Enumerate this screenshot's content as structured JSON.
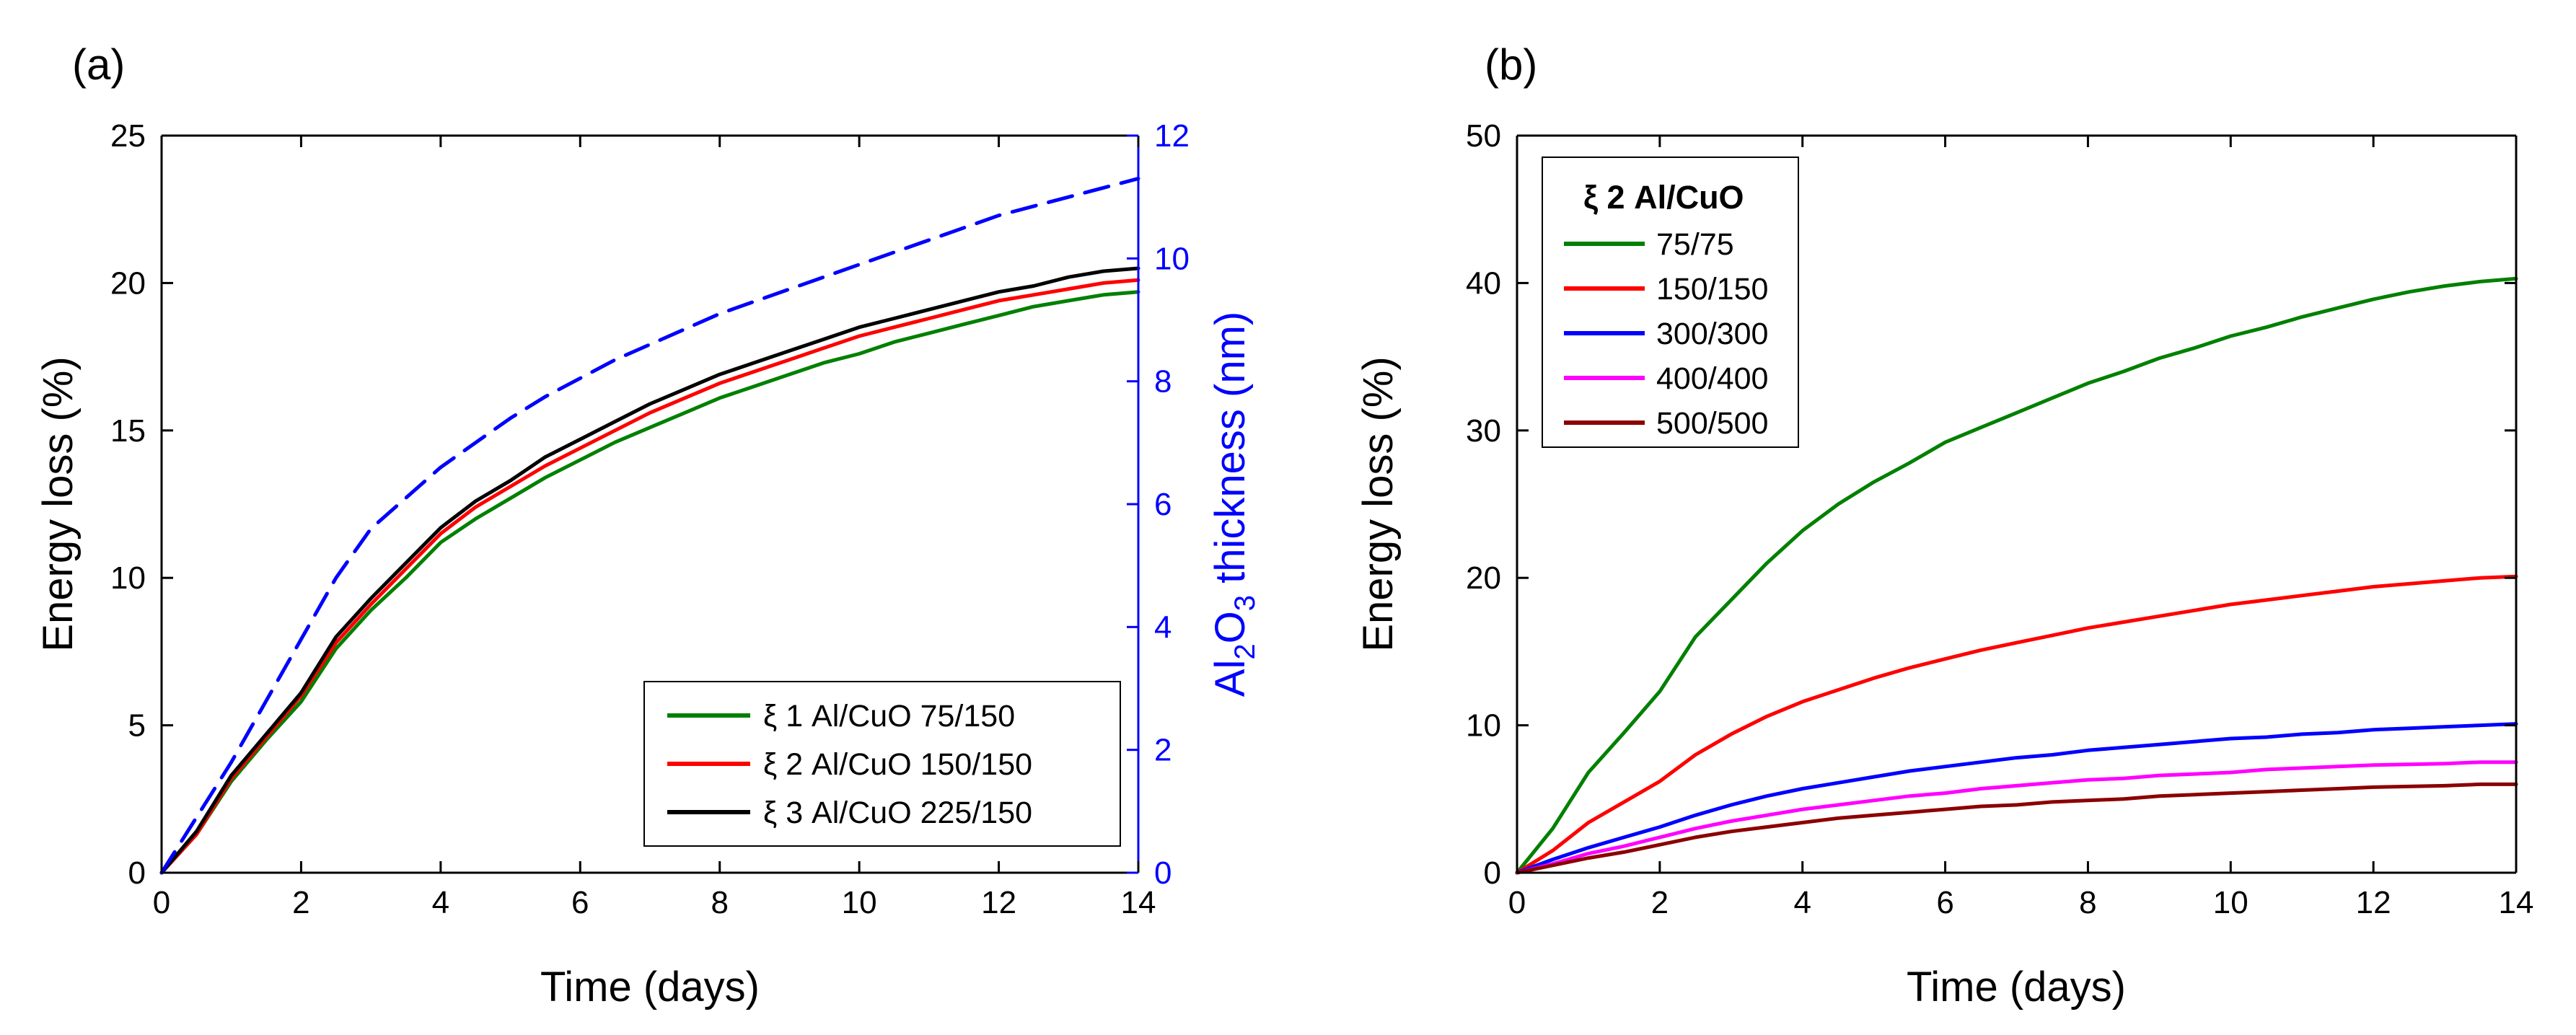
{
  "chart_data": [
    {
      "type": "line",
      "panel_label": "(a)",
      "xlabel": "Time (days)",
      "ylabel": "Energy loss (%)",
      "y2label_parts": [
        "Al",
        "2",
        "O",
        "3",
        " thickness (nm)"
      ],
      "xlim": [
        0,
        14
      ],
      "ylim": [
        0,
        25
      ],
      "y2lim": [
        0,
        12
      ],
      "xticks": [
        0,
        2,
        4,
        6,
        8,
        10,
        12,
        14
      ],
      "yticks": [
        0,
        5,
        10,
        15,
        20,
        25
      ],
      "y2ticks": [
        0,
        2,
        4,
        6,
        8,
        10,
        12
      ],
      "legend_position": "bottom-right",
      "x": [
        0,
        0.5,
        1,
        1.5,
        2,
        2.5,
        3,
        3.5,
        4,
        4.5,
        5,
        5.5,
        6,
        6.5,
        7,
        7.5,
        8,
        8.5,
        9,
        9.5,
        10,
        10.5,
        11,
        11.5,
        12,
        12.5,
        13,
        13.5,
        14
      ],
      "series": [
        {
          "name": "ξ 1 Al/CuO 75/150",
          "color": "#008000",
          "axis": "left",
          "style": "solid",
          "values": [
            0,
            1.3,
            3.1,
            4.5,
            5.8,
            7.6,
            8.9,
            10.0,
            11.2,
            12.0,
            12.7,
            13.4,
            14.0,
            14.6,
            15.1,
            15.6,
            16.1,
            16.5,
            16.9,
            17.3,
            17.6,
            18.0,
            18.3,
            18.6,
            18.9,
            19.2,
            19.4,
            19.6,
            19.7
          ]
        },
        {
          "name": "ξ 2 Al/CuO 150/150",
          "color": "#ff0000",
          "axis": "left",
          "style": "solid",
          "values": [
            0,
            1.3,
            3.2,
            4.6,
            6.0,
            7.8,
            9.1,
            10.3,
            11.5,
            12.4,
            13.1,
            13.8,
            14.4,
            15.0,
            15.6,
            16.1,
            16.6,
            17.0,
            17.4,
            17.8,
            18.2,
            18.5,
            18.8,
            19.1,
            19.4,
            19.6,
            19.8,
            20.0,
            20.1
          ]
        },
        {
          "name": "ξ 3 Al/CuO 225/150",
          "color": "#000000",
          "axis": "left",
          "style": "solid",
          "values": [
            0,
            1.4,
            3.3,
            4.7,
            6.1,
            8.0,
            9.3,
            10.5,
            11.7,
            12.6,
            13.3,
            14.1,
            14.7,
            15.3,
            15.9,
            16.4,
            16.9,
            17.3,
            17.7,
            18.1,
            18.5,
            18.8,
            19.1,
            19.4,
            19.7,
            19.9,
            20.2,
            20.4,
            20.5
          ]
        },
        {
          "name": "Al2O3 thickness",
          "color": "#0000ff",
          "axis": "right",
          "style": "dashed",
          "legend": false,
          "values": [
            0,
            0.9,
            1.8,
            2.8,
            3.8,
            4.8,
            5.6,
            6.1,
            6.6,
            7.0,
            7.4,
            7.75,
            8.05,
            8.35,
            8.6,
            8.85,
            9.1,
            9.3,
            9.5,
            9.7,
            9.9,
            10.1,
            10.3,
            10.5,
            10.7,
            10.85,
            11.0,
            11.15,
            11.3
          ]
        }
      ]
    },
    {
      "type": "line",
      "panel_label": "(b)",
      "xlabel": "Time (days)",
      "ylabel": "Energy loss (%)",
      "xlim": [
        0,
        14
      ],
      "ylim": [
        0,
        50
      ],
      "xticks": [
        0,
        2,
        4,
        6,
        8,
        10,
        12,
        14
      ],
      "yticks": [
        0,
        10,
        20,
        30,
        40,
        50
      ],
      "legend_title": "ξ 2 Al/CuO",
      "legend_position": "top-left",
      "x": [
        0,
        0.5,
        1,
        1.5,
        2,
        2.5,
        3,
        3.5,
        4,
        4.5,
        5,
        5.5,
        6,
        6.5,
        7,
        7.5,
        8,
        8.5,
        9,
        9.5,
        10,
        10.5,
        11,
        11.5,
        12,
        12.5,
        13,
        13.5,
        14
      ],
      "series": [
        {
          "name": "75/75",
          "color": "#008000",
          "values": [
            0,
            3.0,
            6.8,
            9.5,
            12.3,
            16.0,
            18.5,
            21.0,
            23.2,
            25.0,
            26.5,
            27.8,
            29.2,
            30.2,
            31.2,
            32.2,
            33.2,
            34.0,
            34.9,
            35.6,
            36.4,
            37.0,
            37.7,
            38.3,
            38.9,
            39.4,
            39.8,
            40.1,
            40.3
          ]
        },
        {
          "name": "150/150",
          "color": "#ff0000",
          "values": [
            0,
            1.5,
            3.4,
            4.8,
            6.2,
            8.0,
            9.4,
            10.6,
            11.6,
            12.4,
            13.2,
            13.9,
            14.5,
            15.1,
            15.6,
            16.1,
            16.6,
            17.0,
            17.4,
            17.8,
            18.2,
            18.5,
            18.8,
            19.1,
            19.4,
            19.6,
            19.8,
            20.0,
            20.1
          ]
        },
        {
          "name": "300/300",
          "color": "#0000ff",
          "values": [
            0,
            0.9,
            1.7,
            2.4,
            3.1,
            3.9,
            4.6,
            5.2,
            5.7,
            6.1,
            6.5,
            6.9,
            7.2,
            7.5,
            7.8,
            8.0,
            8.3,
            8.5,
            8.7,
            8.9,
            9.1,
            9.2,
            9.4,
            9.5,
            9.7,
            9.8,
            9.9,
            10.0,
            10.1
          ]
        },
        {
          "name": "400/400",
          "color": "#ff00ff",
          "values": [
            0,
            0.6,
            1.3,
            1.8,
            2.4,
            3.0,
            3.5,
            3.9,
            4.3,
            4.6,
            4.9,
            5.2,
            5.4,
            5.7,
            5.9,
            6.1,
            6.3,
            6.4,
            6.6,
            6.7,
            6.8,
            7.0,
            7.1,
            7.2,
            7.3,
            7.35,
            7.4,
            7.5,
            7.5
          ]
        },
        {
          "name": "500/500",
          "color": "#8b0000",
          "values": [
            0,
            0.5,
            1.0,
            1.4,
            1.9,
            2.4,
            2.8,
            3.1,
            3.4,
            3.7,
            3.9,
            4.1,
            4.3,
            4.5,
            4.6,
            4.8,
            4.9,
            5.0,
            5.2,
            5.3,
            5.4,
            5.5,
            5.6,
            5.7,
            5.8,
            5.85,
            5.9,
            6.0,
            6.0
          ]
        }
      ]
    }
  ]
}
